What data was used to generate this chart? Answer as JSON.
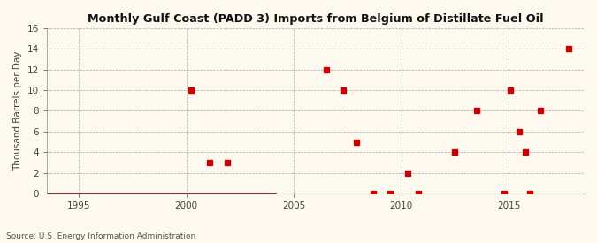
{
  "title": "Monthly Gulf Coast (PADD 3) Imports from Belgium of Distillate Fuel Oil",
  "ylabel": "Thousand Barrels per Day",
  "source": "Source: U.S. Energy Information Administration",
  "background_color": "#fef9ee",
  "plot_bg_color": "#fef9ee",
  "xlim": [
    1993.5,
    2018.5
  ],
  "ylim": [
    0,
    16
  ],
  "yticks": [
    0,
    2,
    4,
    6,
    8,
    10,
    12,
    14,
    16
  ],
  "xticks": [
    1995,
    2000,
    2005,
    2010,
    2015
  ],
  "marker_color": "#cc0000",
  "line_color": "#8b0000",
  "zero_segments": [
    [
      1993.5,
      2004.2
    ]
  ],
  "scatter_points": [
    [
      2000.2,
      10
    ],
    [
      2001.1,
      3
    ],
    [
      2001.9,
      3
    ],
    [
      2006.5,
      12
    ],
    [
      2007.3,
      10
    ],
    [
      2007.9,
      5
    ],
    [
      2008.7,
      0
    ],
    [
      2009.5,
      0
    ],
    [
      2010.3,
      2
    ],
    [
      2010.8,
      0
    ],
    [
      2012.5,
      4
    ],
    [
      2013.5,
      8
    ],
    [
      2014.8,
      0
    ],
    [
      2015.1,
      10
    ],
    [
      2015.5,
      6
    ],
    [
      2015.8,
      4
    ],
    [
      2016.0,
      0
    ],
    [
      2016.5,
      8
    ],
    [
      2017.8,
      14
    ]
  ]
}
